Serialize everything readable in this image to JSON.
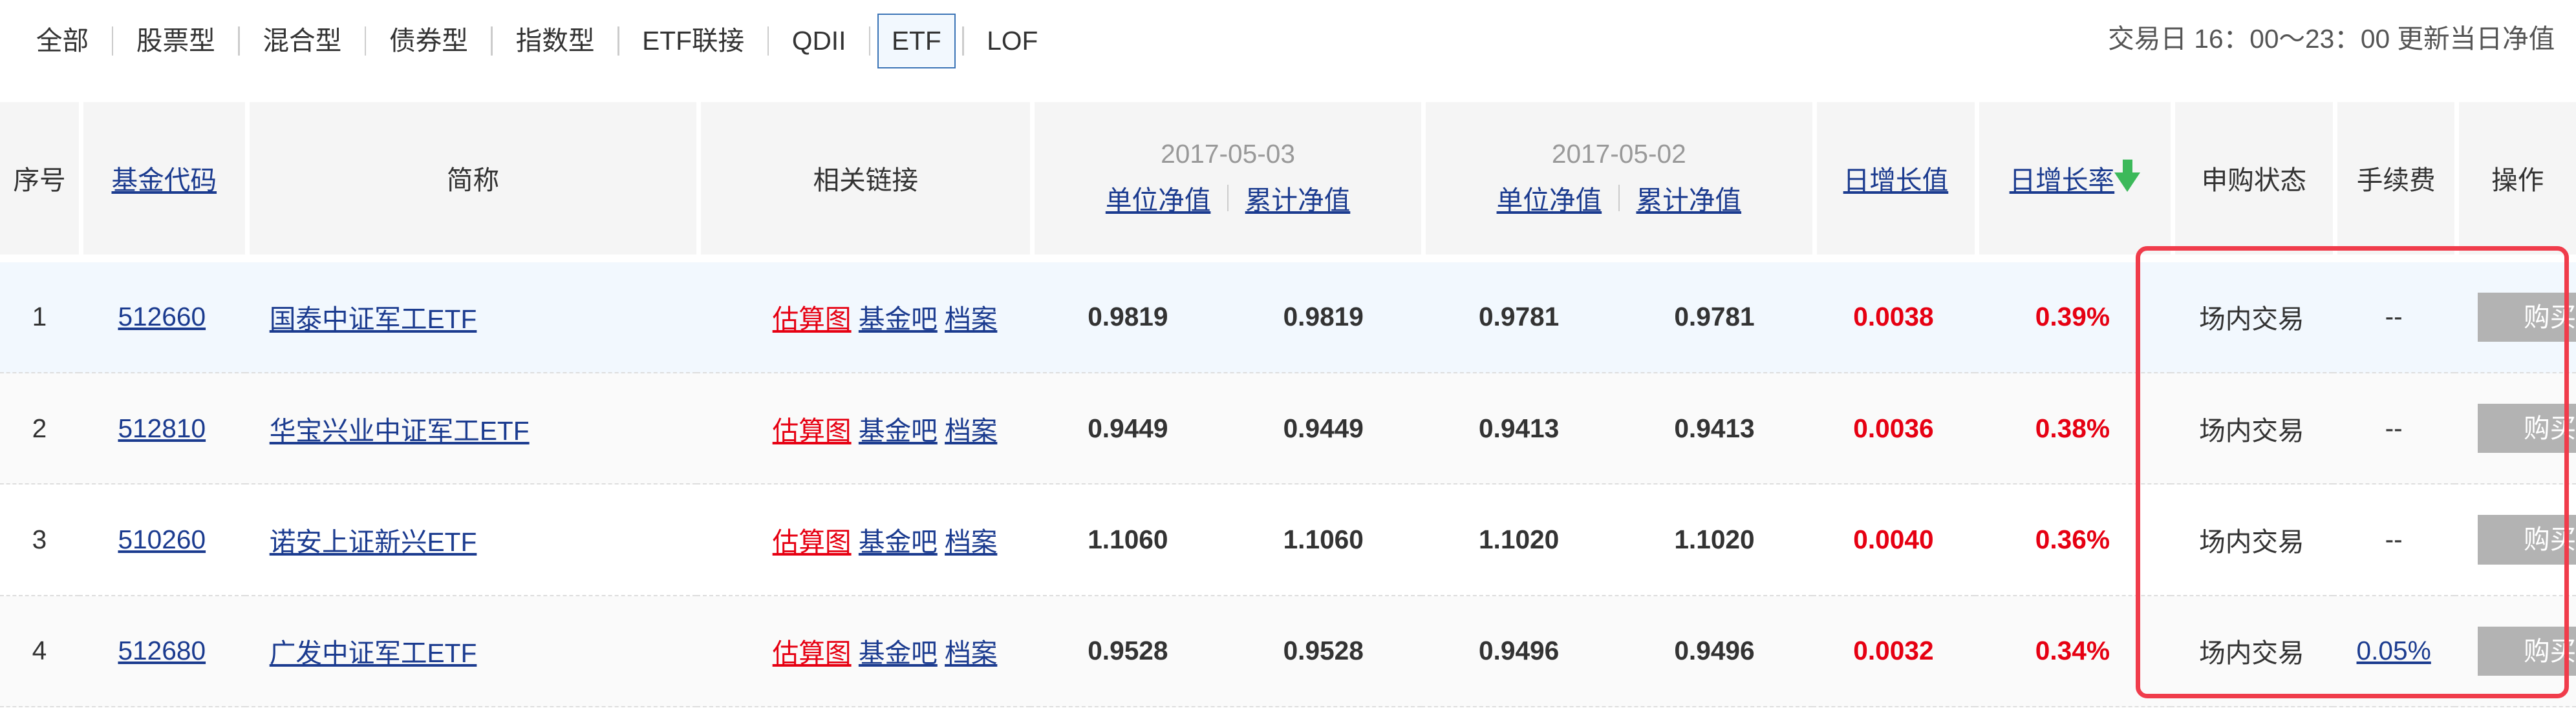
{
  "tabs": [
    {
      "label": "全部",
      "active": false
    },
    {
      "label": "股票型",
      "active": false
    },
    {
      "label": "混合型",
      "active": false
    },
    {
      "label": "债券型",
      "active": false
    },
    {
      "label": "指数型",
      "active": false
    },
    {
      "label": "ETF联接",
      "active": false
    },
    {
      "label": "QDII",
      "active": false
    },
    {
      "label": "ETF",
      "active": true
    },
    {
      "label": "LOF",
      "active": false
    }
  ],
  "update_note": "交易日 16：00～23：00 更新当日净值",
  "header": {
    "index": "序号",
    "code": "基金代码",
    "name": "简称",
    "links": "相关链接",
    "date1": "2017-05-03",
    "date2": "2017-05-02",
    "unit_nav": "单位净值",
    "acc_nav": "累计净值",
    "daily_change": "日增长值",
    "daily_rate": "日增长率",
    "sort_icon": "arrow-down-icon",
    "sort_color": "#3cb95a",
    "status": "申购状态",
    "fee": "手续费",
    "action": "操作"
  },
  "link_labels": {
    "estimate": "估算图",
    "forum": "基金吧",
    "archive": "档案"
  },
  "rows": [
    {
      "index": "1",
      "code": "512660",
      "name": "国泰中证军工ETF",
      "unit1": "0.9819",
      "acc1": "0.9819",
      "unit2": "0.9781",
      "acc2": "0.9781",
      "change": "0.0038",
      "rate": "0.39%",
      "status": "场内交易",
      "fee": "--",
      "action": "购买"
    },
    {
      "index": "2",
      "code": "512810",
      "name": "华宝兴业中证军工ETF",
      "unit1": "0.9449",
      "acc1": "0.9449",
      "unit2": "0.9413",
      "acc2": "0.9413",
      "change": "0.0036",
      "rate": "0.38%",
      "status": "场内交易",
      "fee": "--",
      "action": "购买"
    },
    {
      "index": "3",
      "code": "510260",
      "name": "诺安上证新兴ETF",
      "unit1": "1.1060",
      "acc1": "1.1060",
      "unit2": "1.1020",
      "acc2": "1.1020",
      "change": "0.0040",
      "rate": "0.36%",
      "status": "场内交易",
      "fee": "--",
      "action": "购买"
    },
    {
      "index": "4",
      "code": "512680",
      "name": "广发中证军工ETF",
      "unit1": "0.9528",
      "acc1": "0.9528",
      "unit2": "0.9496",
      "acc2": "0.9496",
      "change": "0.0032",
      "rate": "0.34%",
      "status": "场内交易",
      "fee": "0.05%",
      "fee_link": true,
      "action": "购买"
    }
  ],
  "colors": {
    "highlight_box": "#f03c4b",
    "positive": "#e60012",
    "link": "#1b3b8f"
  }
}
